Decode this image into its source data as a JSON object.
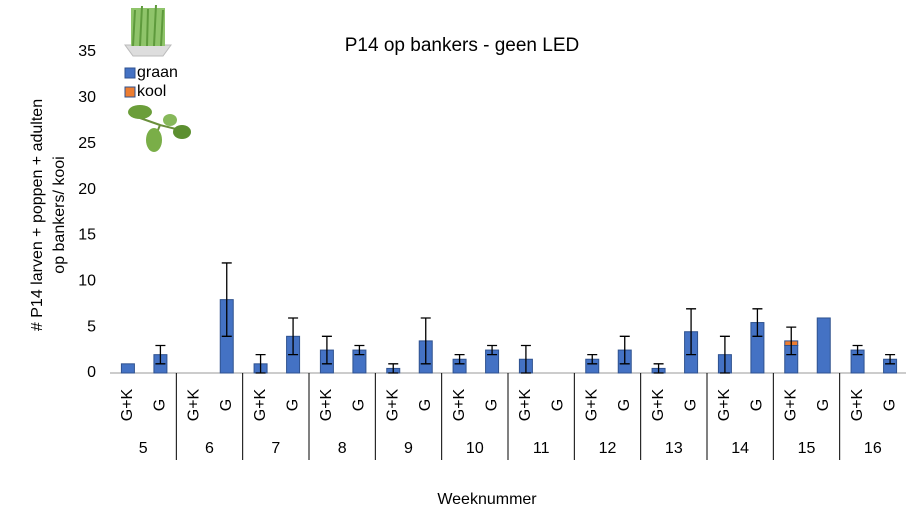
{
  "chart_data": {
    "type": "stacked-bar",
    "title": "P14 op bankers - geen LED",
    "y_label": [
      "# P14 larven + poppen + adulten",
      "op bankers/ kooi"
    ],
    "x_label": "Weeknummer",
    "categories": [
      "G+K",
      "G",
      "G+K",
      "G",
      "G+K",
      "G",
      "G+K",
      "G",
      "G+K",
      "G",
      "G+K",
      "G",
      "G+K",
      "G",
      "G+K",
      "G",
      "G+K",
      "G",
      "G+K",
      "G",
      "G+K",
      "G",
      "G+K",
      "G"
    ],
    "groups": [
      "5",
      "6",
      "7",
      "8",
      "9",
      "10",
      "11",
      "12",
      "13",
      "14",
      "15",
      "16"
    ],
    "series": [
      {
        "name": "graan",
        "color": "#4472c4",
        "values": [
          1,
          2,
          0,
          8,
          1,
          4,
          2.5,
          2.5,
          0.5,
          3.5,
          1.5,
          2.5,
          1.5,
          0,
          1.5,
          2.5,
          0.5,
          4.5,
          2,
          5.5,
          3,
          6,
          2.5,
          1.5
        ]
      },
      {
        "name": "kool",
        "color": "#ed7d31",
        "values": [
          0,
          0,
          0,
          0,
          0,
          0,
          0,
          0,
          0,
          0,
          0,
          0,
          0,
          0,
          0,
          0,
          0,
          0,
          0,
          0,
          0.5,
          0,
          0,
          0
        ]
      }
    ],
    "errors": [
      null,
      1,
      null,
      4,
      1,
      2,
      1.5,
      0.5,
      0.5,
      2.5,
      0.5,
      0.5,
      1.5,
      null,
      0.5,
      1.5,
      0.5,
      2.5,
      2,
      1.5,
      1.5,
      null,
      0.5,
      0.5
    ],
    "ylim": [
      0,
      35
    ],
    "yticks": [
      0,
      5,
      10,
      15,
      20,
      25,
      30,
      35
    ]
  }
}
